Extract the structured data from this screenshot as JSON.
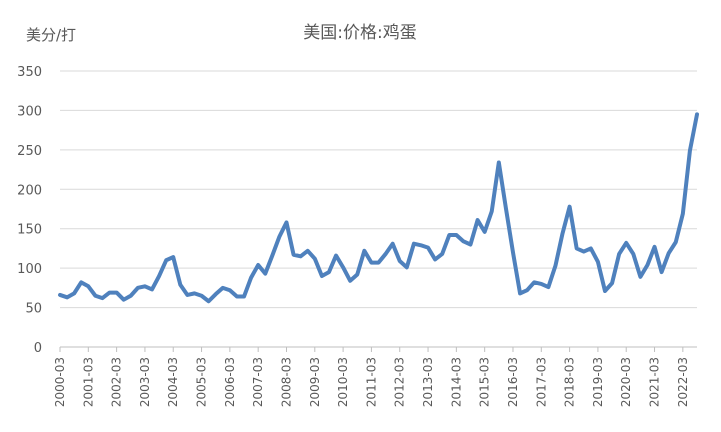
{
  "chart_data": {
    "type": "line",
    "title": "美国:价格:鸡蛋",
    "ylabel": "美分/打",
    "xlabel": "",
    "ylim": [
      0,
      350
    ],
    "yticks": [
      0,
      50,
      100,
      150,
      200,
      250,
      300,
      350
    ],
    "grid": true,
    "legend": "none",
    "x_tick_labels": [
      "2000-03",
      "2001-03",
      "2002-03",
      "2003-03",
      "2004-03",
      "2005-03",
      "2006-03",
      "2007-03",
      "2008-03",
      "2009-03",
      "2010-03",
      "2011-03",
      "2012-03",
      "2013-03",
      "2014-03",
      "2015-03",
      "2016-03",
      "2017-03",
      "2018-03",
      "2019-03",
      "2020-03",
      "2021-03",
      "2022-03"
    ],
    "series": [
      {
        "color": "#4f81bd",
        "x": [
          "2000-03",
          "2000-06",
          "2000-09",
          "2000-12",
          "2001-03",
          "2001-06",
          "2001-09",
          "2001-12",
          "2002-03",
          "2002-06",
          "2002-09",
          "2002-12",
          "2003-03",
          "2003-06",
          "2003-09",
          "2003-12",
          "2004-03",
          "2004-06",
          "2004-09",
          "2004-12",
          "2005-03",
          "2005-06",
          "2005-09",
          "2005-12",
          "2006-03",
          "2006-06",
          "2006-09",
          "2006-12",
          "2007-03",
          "2007-06",
          "2007-09",
          "2007-12",
          "2008-03",
          "2008-06",
          "2008-09",
          "2008-12",
          "2009-03",
          "2009-06",
          "2009-09",
          "2009-12",
          "2010-03",
          "2010-06",
          "2010-09",
          "2010-12",
          "2011-03",
          "2011-06",
          "2011-09",
          "2011-12",
          "2012-03",
          "2012-06",
          "2012-09",
          "2012-12",
          "2013-03",
          "2013-06",
          "2013-09",
          "2013-12",
          "2014-03",
          "2014-06",
          "2014-09",
          "2014-12",
          "2015-03",
          "2015-06",
          "2015-09",
          "2015-12",
          "2016-03",
          "2016-06",
          "2016-09",
          "2016-12",
          "2017-03",
          "2017-06",
          "2017-09",
          "2017-12",
          "2018-03",
          "2018-06",
          "2018-09",
          "2018-12",
          "2019-03",
          "2019-06",
          "2019-09",
          "2019-12",
          "2020-03",
          "2020-06",
          "2020-09",
          "2020-12",
          "2021-03",
          "2021-06",
          "2021-09",
          "2021-12",
          "2022-03",
          "2022-06",
          "2022-09"
        ],
        "values": [
          66,
          63,
          68,
          82,
          77,
          65,
          62,
          69,
          69,
          60,
          65,
          75,
          77,
          73,
          90,
          110,
          114,
          79,
          66,
          68,
          65,
          58,
          67,
          75,
          72,
          64,
          64,
          88,
          104,
          93,
          116,
          140,
          158,
          117,
          115,
          122,
          112,
          90,
          95,
          116,
          101,
          84,
          92,
          122,
          107,
          107,
          118,
          131,
          109,
          101,
          131,
          129,
          126,
          111,
          118,
          142,
          142,
          134,
          130,
          161,
          146,
          172,
          234,
          176,
          120,
          68,
          72,
          82,
          80,
          76,
          103,
          144,
          178,
          125,
          121,
          125,
          108,
          71,
          81,
          118,
          132,
          118,
          89,
          104,
          127,
          95,
          119,
          133,
          169,
          249,
          295
        ]
      }
    ]
  }
}
